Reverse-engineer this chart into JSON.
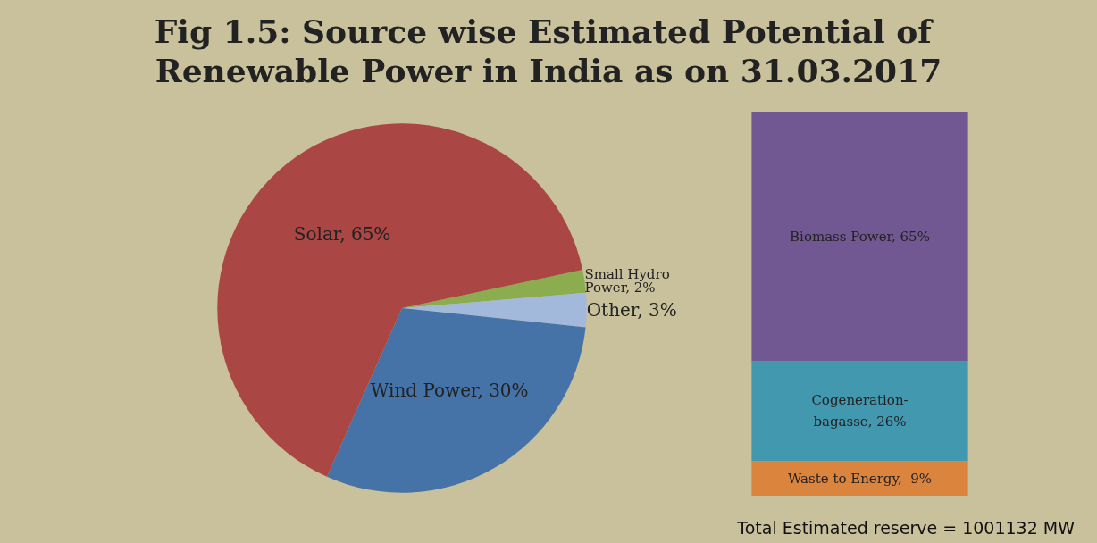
{
  "chart_data": [
    {
      "type": "pie",
      "title": "Fig 1.5: Source wise Estimated Potential of Renewable Power in India as on 31.03.2017",
      "categories": [
        "Small Hydro Power",
        "Other",
        "Wind Power",
        "Solar"
      ],
      "values": [
        2,
        3,
        30,
        65
      ],
      "colors": [
        "#8bad4f",
        "#a3b9dc",
        "#4572a7",
        "#aa4643"
      ],
      "value_labels": [
        "2%",
        "3%",
        "30%",
        "65%"
      ],
      "annotations": [
        "Total Estimated reserve = 1001132 MW"
      ]
    },
    {
      "type": "bar",
      "stacked": true,
      "categories": [
        null
      ],
      "tick_labels": false,
      "series": [
        {
          "color": "#db843d",
          "values": [
            9
          ],
          "value_labels": [
            "Waste to Energy,  9%"
          ]
        },
        {
          "color": "#4198af",
          "values": [
            26
          ],
          "value_labels": [
            "Cogeneration-\nbagasse, 26%"
          ]
        },
        {
          "color": "#725893",
          "values": [
            65
          ],
          "value_labels": [
            "Biomass Power, 65%"
          ]
        }
      ]
    }
  ]
}
